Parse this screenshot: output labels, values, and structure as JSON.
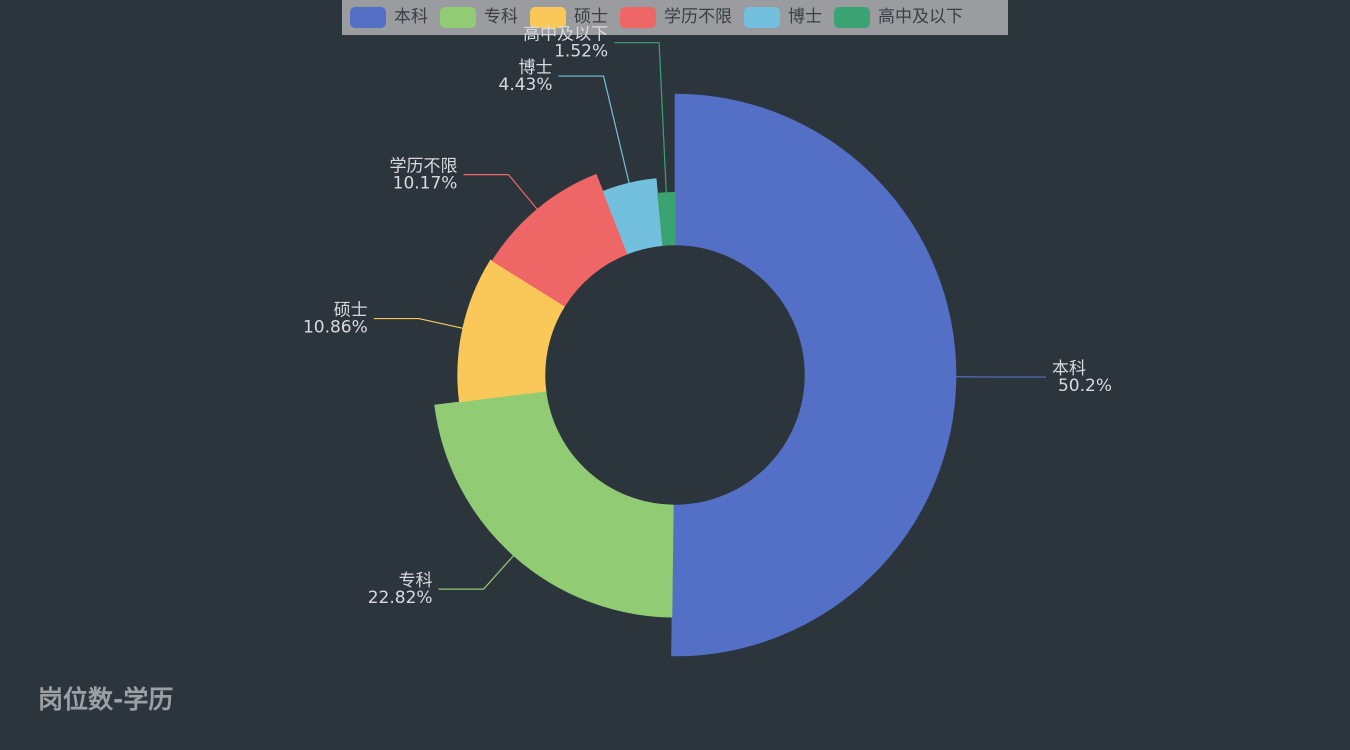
{
  "chart_data": {
    "type": "pie",
    "variant": "rose-donut",
    "title": "岗位数-学历",
    "legend_position": "top-center",
    "series": [
      {
        "name": "",
        "values": [
          {
            "label": "本科",
            "value": 50.2,
            "value_label": "50.2%",
            "color": "#5470c6"
          },
          {
            "label": "专科",
            "value": 22.82,
            "value_label": "22.82%",
            "color": "#91cc75"
          },
          {
            "label": "硕士",
            "value": 10.86,
            "value_label": "10.86%",
            "color": "#fac858"
          },
          {
            "label": "学历不限",
            "value": 10.17,
            "value_label": "10.17%",
            "color": "#ee6666"
          },
          {
            "label": "博士",
            "value": 4.43,
            "value_label": "4.43%",
            "color": "#73c0de"
          },
          {
            "label": "高中及以下",
            "value": 1.52,
            "value_label": "1.52%",
            "color": "#3ba272"
          }
        ]
      }
    ]
  }
}
